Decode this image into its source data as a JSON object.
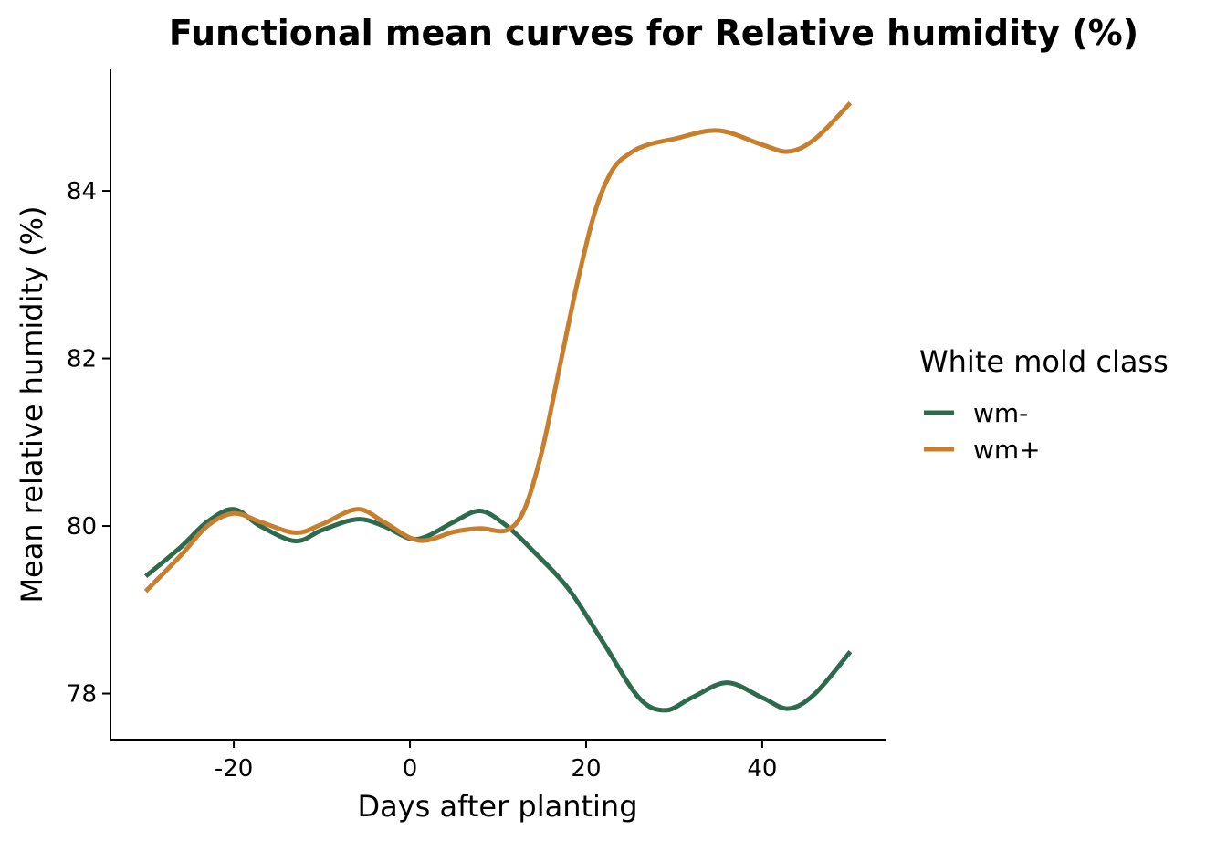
{
  "chart_data": {
    "type": "line",
    "title": "Functional mean curves for Relative humidity (%)",
    "xlabel": "Days after planting",
    "ylabel": "Mean relative humidity (%)",
    "xlim": [
      -34,
      54
    ],
    "ylim": [
      77.45,
      85.45
    ],
    "xticks": [
      -20,
      0,
      20,
      40
    ],
    "yticks": [
      78,
      80,
      82,
      84
    ],
    "grid": false,
    "legend": {
      "title": "White mold class",
      "position": "right"
    },
    "series": [
      {
        "name": "wm-",
        "color": "#2E6B4E",
        "x": [
          -30,
          -26,
          -23,
          -20,
          -17,
          -13,
          -10,
          -6,
          -3,
          0,
          2,
          5,
          8,
          11,
          14,
          18,
          22,
          26,
          29,
          32,
          36,
          40,
          43,
          46,
          50
        ],
        "y": [
          79.4,
          79.75,
          80.05,
          80.2,
          80.0,
          79.82,
          79.95,
          80.08,
          80.0,
          79.85,
          79.88,
          80.05,
          80.18,
          80.0,
          79.7,
          79.25,
          78.6,
          77.95,
          77.8,
          77.95,
          78.13,
          77.95,
          77.82,
          78.0,
          78.5
        ]
      },
      {
        "name": "wm+",
        "color": "#C77F2E",
        "x": [
          -30,
          -26,
          -23,
          -20,
          -17,
          -13,
          -10,
          -6,
          -3,
          0,
          2,
          5,
          8,
          11,
          13,
          15,
          17,
          19,
          21,
          23,
          25,
          27,
          30,
          35,
          40,
          43,
          46,
          50
        ],
        "y": [
          79.22,
          79.65,
          80.0,
          80.15,
          80.05,
          79.92,
          80.02,
          80.2,
          80.05,
          79.86,
          79.83,
          79.93,
          79.97,
          79.95,
          80.2,
          80.9,
          81.9,
          82.9,
          83.75,
          84.25,
          84.45,
          84.55,
          84.62,
          84.72,
          84.55,
          84.47,
          84.62,
          85.05
        ]
      }
    ]
  }
}
